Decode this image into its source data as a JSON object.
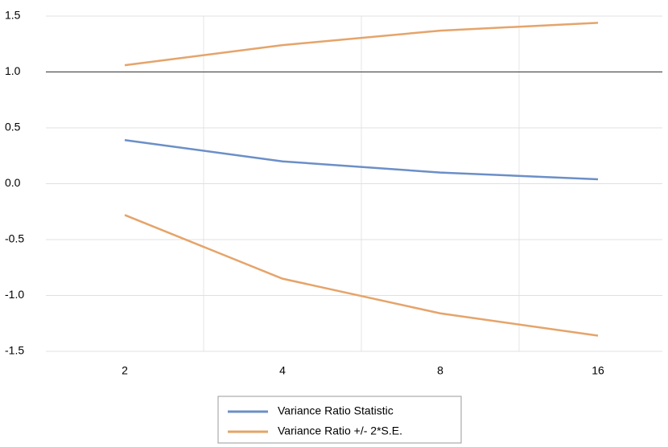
{
  "chart_data": {
    "type": "line",
    "categories": [
      "2",
      "4",
      "8",
      "16"
    ],
    "series": [
      {
        "name": "Variance Ratio Statistic",
        "color": "#6b8fc7",
        "values": [
          0.39,
          0.2,
          0.1,
          0.04
        ]
      },
      {
        "name": "Variance Ratio +/- 2*S.E.",
        "color": "#e5a46a",
        "upper": [
          1.06,
          1.24,
          1.37,
          1.44
        ],
        "lower": [
          -0.28,
          -0.85,
          -1.16,
          -1.36
        ]
      }
    ],
    "ylim": [
      -1.5,
      1.5
    ],
    "yticks": [
      -1.5,
      -0.5,
      {
        "value": -1,
        "label": "-1.0"
      },
      {
        "value": 0,
        "label": "0.0"
      },
      0.5,
      {
        "value": 1,
        "label": "1.0"
      },
      1.5
    ],
    "reference_line": 1,
    "grid": true,
    "legend": "bottom"
  }
}
